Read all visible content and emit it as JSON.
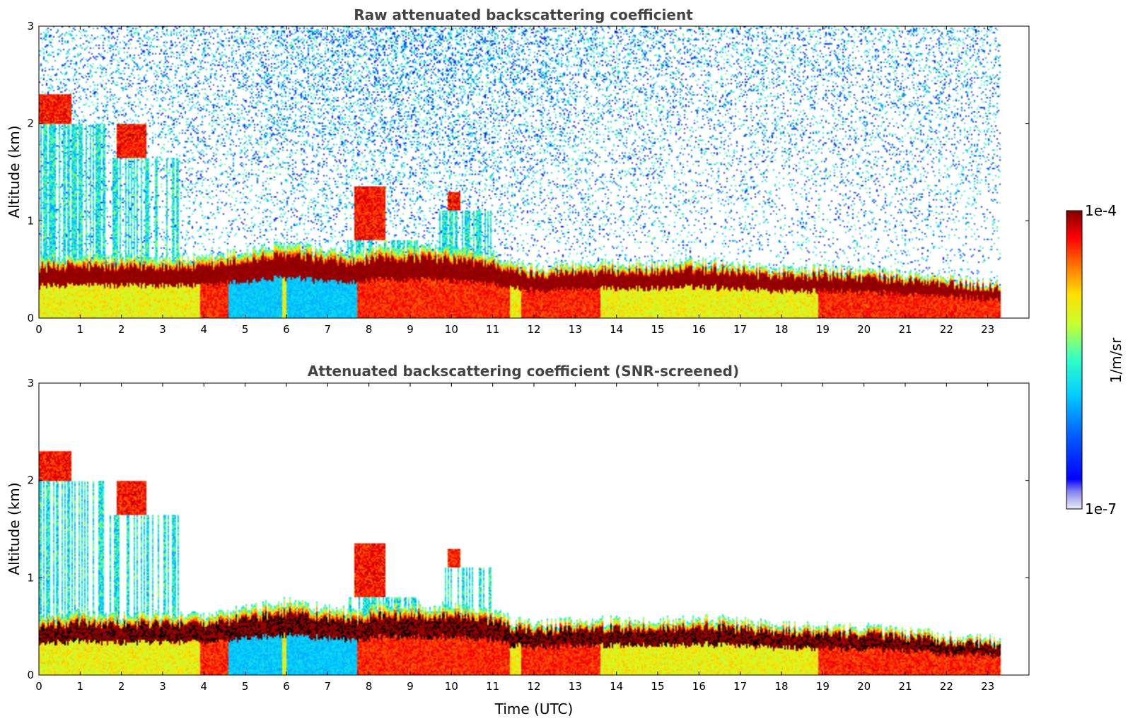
{
  "chart_data": {
    "type": "heatmap",
    "colorbar": {
      "label": "1/m/sr",
      "min_label": "1e-7",
      "max_label": "1e-4",
      "scale": "log",
      "range": [
        1e-07,
        0.0001
      ],
      "colormap": "jet"
    },
    "x_ticks": [
      "0",
      "1",
      "2",
      "3",
      "4",
      "5",
      "6",
      "7",
      "8",
      "9",
      "10",
      "11",
      "12",
      "13",
      "14",
      "15",
      "16",
      "17",
      "18",
      "19",
      "20",
      "21",
      "22",
      "23"
    ],
    "y_ticks": [
      "0",
      "1",
      "2",
      "3"
    ],
    "xlim": [
      0,
      24
    ],
    "ylim": [
      0,
      3
    ],
    "data_end_hour": 23.3,
    "panels": [
      {
        "id": "raw",
        "title": "Raw attenuated backscattering coefficient",
        "ylabel": "Altitude (km)",
        "xlabel": "",
        "noise_above_boundary_layer": true
      },
      {
        "id": "screened",
        "title": "Attenuated backscattering coefficient (SNR-screened)",
        "ylabel": "Altitude (km)",
        "xlabel": "Time (UTC)",
        "noise_above_boundary_layer": false
      }
    ],
    "features": {
      "boundary_layer_top_km": [
        [
          0,
          0.6
        ],
        [
          1,
          0.62
        ],
        [
          2,
          0.6
        ],
        [
          3,
          0.62
        ],
        [
          4,
          0.6
        ],
        [
          4.5,
          0.65
        ],
        [
          5,
          0.68
        ],
        [
          6,
          0.75
        ],
        [
          7,
          0.68
        ],
        [
          7.7,
          0.65
        ],
        [
          8,
          0.7
        ],
        [
          9,
          0.72
        ],
        [
          10,
          0.7
        ],
        [
          11,
          0.65
        ],
        [
          11.5,
          0.55
        ],
        [
          12,
          0.52
        ],
        [
          13,
          0.55
        ],
        [
          14,
          0.55
        ],
        [
          15,
          0.55
        ],
        [
          16,
          0.58
        ],
        [
          17,
          0.55
        ],
        [
          18,
          0.5
        ],
        [
          19,
          0.5
        ],
        [
          20,
          0.48
        ],
        [
          21,
          0.45
        ],
        [
          22,
          0.4
        ],
        [
          23.3,
          0.35
        ]
      ],
      "cloud_layers": [
        {
          "t_start": 0,
          "t_end": 0.8,
          "base_km": 2.0,
          "top_km": 2.3
        },
        {
          "t_start": 1.9,
          "t_end": 2.6,
          "base_km": 1.65,
          "top_km": 2.0
        },
        {
          "t_start": 7.65,
          "t_end": 8.4,
          "base_km": 0.8,
          "top_km": 1.35
        },
        {
          "t_start": 9.9,
          "t_end": 10.2,
          "base_km": 1.1,
          "top_km": 1.3
        }
      ],
      "low_backscatter_intervals": [
        {
          "t_start": 4.6,
          "t_end": 5.9
        },
        {
          "t_start": 6.0,
          "t_end": 7.7
        }
      ],
      "strong_near_surface_intervals": [
        {
          "t_start": 3.9,
          "t_end": 4.6
        },
        {
          "t_start": 7.7,
          "t_end": 11.4
        },
        {
          "t_start": 11.7,
          "t_end": 13.6
        },
        {
          "t_start": 18.9,
          "t_end": 23.3
        }
      ]
    }
  }
}
